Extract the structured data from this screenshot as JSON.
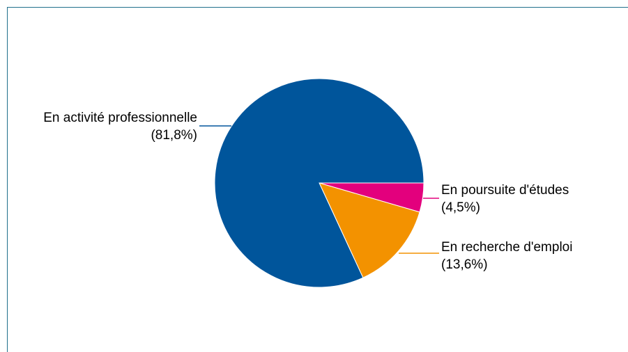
{
  "chart_data": {
    "type": "pie",
    "title": "",
    "legend": "none",
    "slices": [
      {
        "label": "En activité professionnelle",
        "value_label": "(81,8%)",
        "value": 81.8,
        "color": "#00559b"
      },
      {
        "label": "En poursuite d'études",
        "value_label": "(4,5%)",
        "value": 4.5,
        "color": "#e3007d"
      },
      {
        "label": "En recherche d'emploi",
        "value_label": "(13,6%)",
        "value": 13.6,
        "color": "#f39200"
      }
    ]
  },
  "frame_color": "#1f6f8b"
}
